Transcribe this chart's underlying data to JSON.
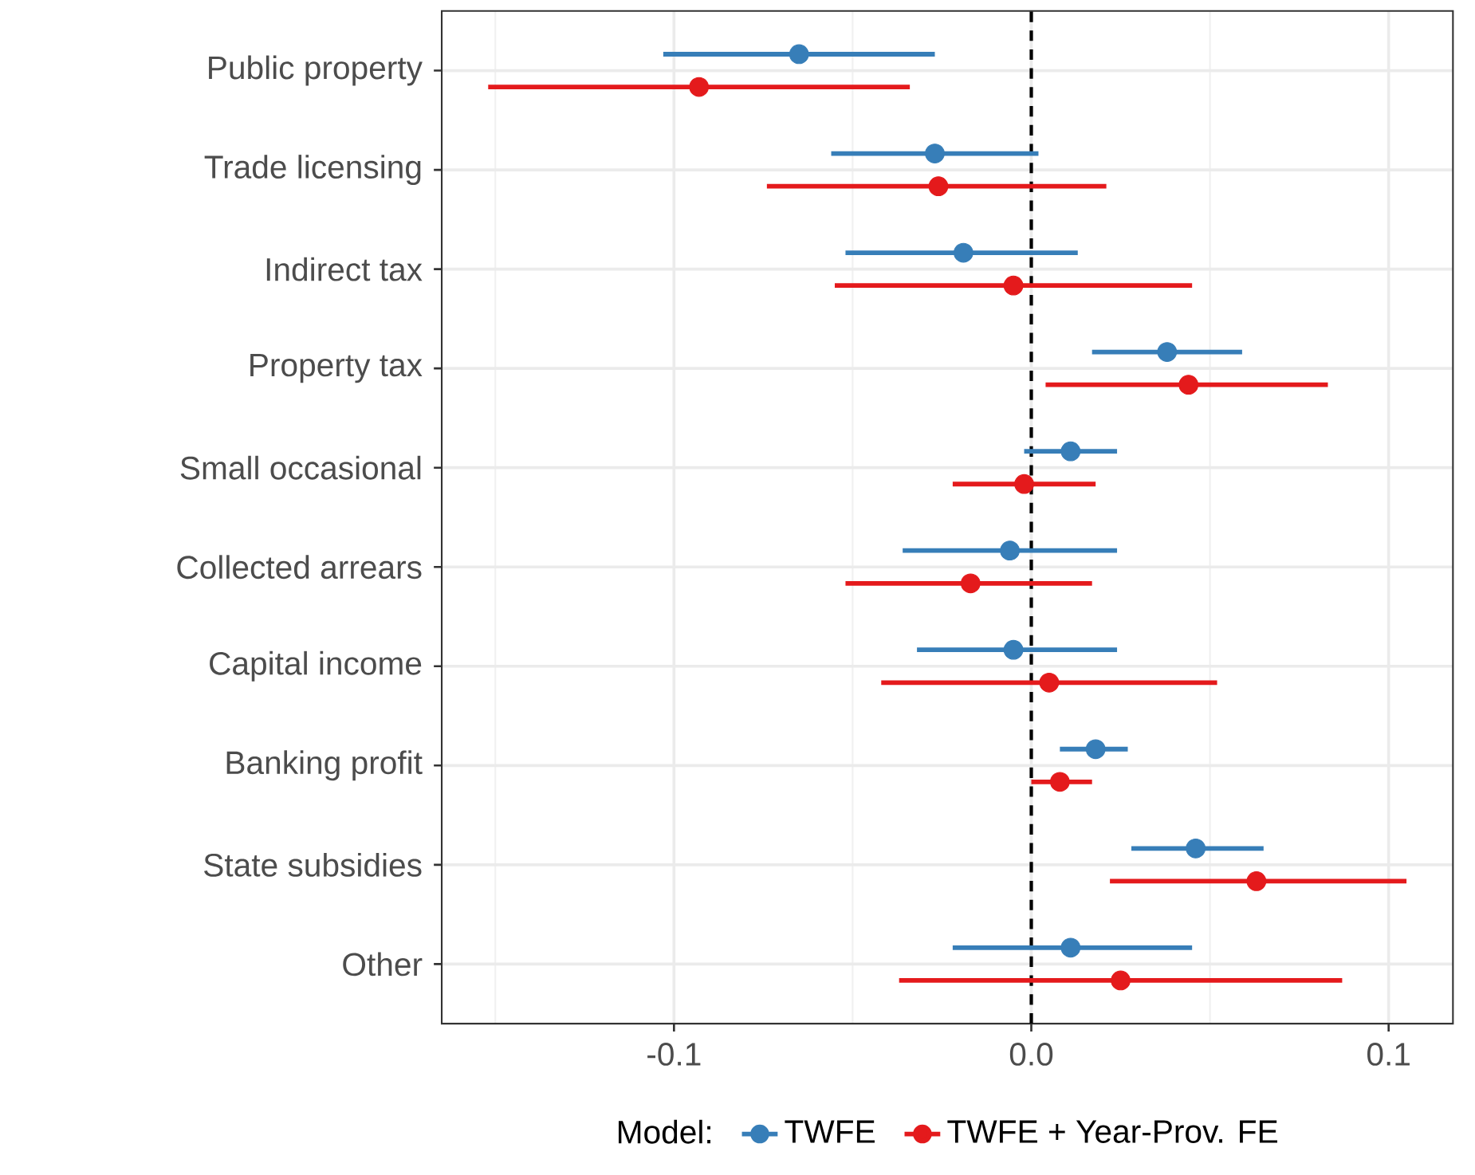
{
  "chart_data": {
    "type": "scatter",
    "orientation": "horizontal",
    "legend_title": "Model:",
    "categories": [
      "Public property",
      "Trade licensing",
      "Indirect tax",
      "Property tax",
      "Small occasional",
      "Collected arrears",
      "Capital income",
      "Banking profit",
      "State subsidies",
      "Other"
    ],
    "series": [
      {
        "name": "TWFE",
        "color": "#377eb8",
        "values": [
          -0.065,
          -0.027,
          -0.019,
          0.038,
          0.011,
          -0.006,
          -0.005,
          0.018,
          0.046,
          0.011
        ],
        "errors": [
          [
            -0.103,
            -0.027
          ],
          [
            -0.056,
            0.002
          ],
          [
            -0.052,
            0.013
          ],
          [
            0.017,
            0.059
          ],
          [
            -0.002,
            0.024
          ],
          [
            -0.036,
            0.024
          ],
          [
            -0.032,
            0.024
          ],
          [
            0.008,
            0.027
          ],
          [
            0.028,
            0.065
          ],
          [
            -0.022,
            0.045
          ]
        ]
      },
      {
        "name": "TWFE + Year-Prov. FE",
        "color": "#e41a1c",
        "values": [
          -0.093,
          -0.026,
          -0.005,
          0.044,
          -0.002,
          -0.017,
          0.005,
          0.008,
          0.063,
          0.025
        ],
        "errors": [
          [
            -0.152,
            -0.034
          ],
          [
            -0.074,
            0.021
          ],
          [
            -0.055,
            0.045
          ],
          [
            0.004,
            0.083
          ],
          [
            -0.022,
            0.018
          ],
          [
            -0.052,
            0.017
          ],
          [
            -0.042,
            0.052
          ],
          [
            0.0,
            0.017
          ],
          [
            0.022,
            0.105
          ],
          [
            -0.037,
            0.087
          ]
        ]
      }
    ],
    "xlim": [
      -0.165,
      0.118
    ],
    "xticks": [
      {
        "value": -0.1,
        "label": "-0.1"
      },
      {
        "value": 0,
        "label": "0.0"
      },
      {
        "value": 0.1,
        "label": "0.1"
      }
    ],
    "ref_lines": [
      {
        "axis": "x",
        "value": 0,
        "color": "#000000",
        "line_style": "dashed"
      }
    ],
    "grid": true,
    "legend": "bottom",
    "marker": "circle",
    "line_style": "solid"
  }
}
